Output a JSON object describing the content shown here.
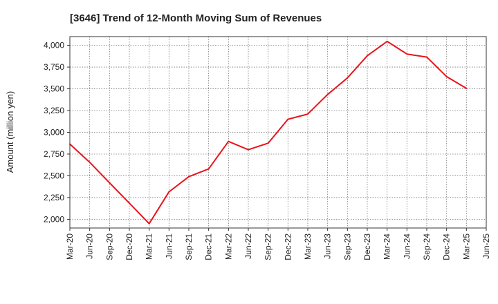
{
  "chart_data": {
    "type": "line",
    "title": "[3646]  Trend of 12-Month Moving Sum of Revenues",
    "xlabel": "",
    "ylabel": "Amount (million yen)",
    "ylim": [
      1900,
      4100
    ],
    "yticks": [
      2000,
      2250,
      2500,
      2750,
      3000,
      3250,
      3500,
      3750,
      4000
    ],
    "ytick_labels": [
      "2,000",
      "2,250",
      "2,500",
      "2,750",
      "3,000",
      "3,250",
      "3,500",
      "3,750",
      "4,000"
    ],
    "categories": [
      "Mar-20",
      "Jun-20",
      "Sep-20",
      "Dec-20",
      "Mar-21",
      "Jun-21",
      "Sep-21",
      "Dec-21",
      "Mar-22",
      "Jun-22",
      "Sep-22",
      "Dec-22",
      "Mar-23",
      "Jun-23",
      "Sep-23",
      "Dec-23",
      "Mar-24",
      "Jun-24",
      "Sep-24",
      "Dec-24",
      "Mar-25",
      "Jun-25"
    ],
    "grid": true,
    "series": [
      {
        "color": "#e8141b",
        "values": [
          2865,
          2655,
          2420,
          2185,
          1950,
          2315,
          2490,
          2580,
          2895,
          2800,
          2875,
          3150,
          3210,
          3435,
          3625,
          3880,
          4045,
          3900,
          3865,
          3640,
          3505,
          null
        ]
      }
    ]
  }
}
